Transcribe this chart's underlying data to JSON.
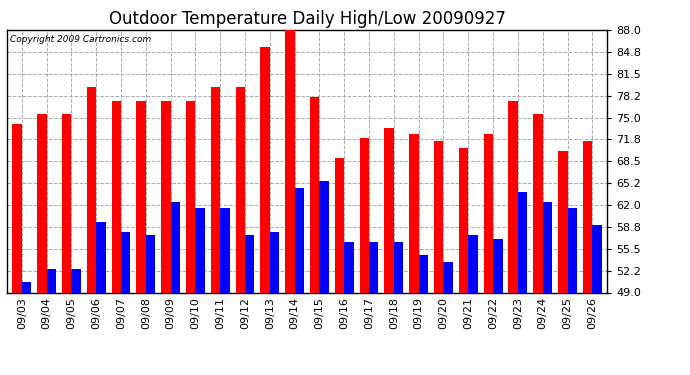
{
  "title": "Outdoor Temperature Daily High/Low 20090927",
  "copyright_text": "Copyright 2009 Cartronics.com",
  "dates": [
    "09/03",
    "09/04",
    "09/05",
    "09/06",
    "09/07",
    "09/08",
    "09/09",
    "09/10",
    "09/11",
    "09/12",
    "09/13",
    "09/14",
    "09/15",
    "09/16",
    "09/17",
    "09/18",
    "09/19",
    "09/20",
    "09/21",
    "09/22",
    "09/23",
    "09/24",
    "09/25",
    "09/26"
  ],
  "highs": [
    74.0,
    75.5,
    75.5,
    79.5,
    77.5,
    77.5,
    77.5,
    77.5,
    79.5,
    79.5,
    85.5,
    88.0,
    78.0,
    69.0,
    72.0,
    73.5,
    72.5,
    71.5,
    70.5,
    72.5,
    77.5,
    75.5,
    70.0,
    71.5
  ],
  "lows": [
    50.5,
    52.5,
    52.5,
    59.5,
    58.0,
    57.5,
    62.5,
    61.5,
    61.5,
    57.5,
    58.0,
    64.5,
    65.5,
    56.5,
    56.5,
    56.5,
    54.5,
    53.5,
    57.5,
    57.0,
    64.0,
    62.5,
    61.5,
    59.0
  ],
  "high_color": "#FF0000",
  "low_color": "#0000FF",
  "background_color": "#FFFFFF",
  "ymin": 49.0,
  "ymax": 88.0,
  "yticks": [
    49.0,
    52.2,
    55.5,
    58.8,
    62.0,
    65.2,
    68.5,
    71.8,
    75.0,
    78.2,
    81.5,
    84.8,
    88.0
  ],
  "grid_color": "#AAAAAA",
  "title_fontsize": 12,
  "tick_fontsize": 8,
  "bar_width": 0.38
}
